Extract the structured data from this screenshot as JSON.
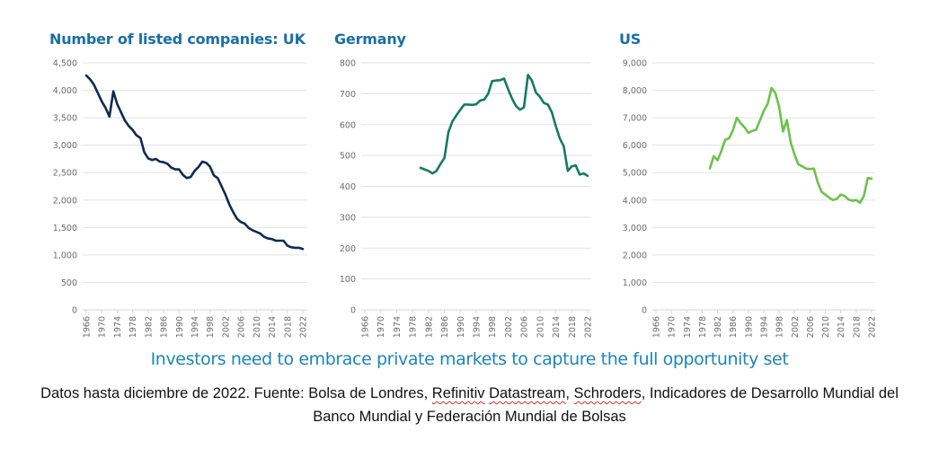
{
  "chart_data": [
    {
      "type": "line",
      "title": "Number of listed companies: UK",
      "xlabel": "",
      "ylabel": "",
      "ylim": [
        0,
        4500
      ],
      "yticks": [
        0,
        500,
        1000,
        1500,
        2000,
        2500,
        3000,
        3500,
        4000,
        4500
      ],
      "ytick_labels": [
        "0",
        "500",
        "1,000",
        "1,500",
        "2,000",
        "2,500",
        "3,000",
        "3,500",
        "4,000",
        "4,500"
      ],
      "xlim": [
        1966,
        2022
      ],
      "xticks": [
        "1966",
        "1970",
        "1974",
        "1978",
        "1982",
        "1986",
        "1990",
        "1994",
        "1998",
        "2002",
        "2006",
        "2010",
        "2014",
        "2018",
        "2022"
      ],
      "grid": true,
      "color": "#0d2a52",
      "x": [
        1966,
        1967,
        1968,
        1969,
        1970,
        1971,
        1972,
        1973,
        1974,
        1975,
        1976,
        1977,
        1978,
        1979,
        1980,
        1981,
        1982,
        1983,
        1984,
        1985,
        1986,
        1987,
        1988,
        1989,
        1990,
        1991,
        1992,
        1993,
        1994,
        1995,
        1996,
        1997,
        1998,
        1999,
        2000,
        2001,
        2002,
        2003,
        2004,
        2005,
        2006,
        2007,
        2008,
        2009,
        2010,
        2011,
        2012,
        2013,
        2014,
        2015,
        2016,
        2017,
        2018,
        2019,
        2020,
        2021,
        2022
      ],
      "values": [
        4270,
        4200,
        4100,
        3950,
        3800,
        3680,
        3520,
        3980,
        3750,
        3600,
        3450,
        3350,
        3280,
        3180,
        3130,
        2870,
        2760,
        2730,
        2750,
        2700,
        2690,
        2660,
        2590,
        2560,
        2560,
        2460,
        2400,
        2420,
        2530,
        2600,
        2700,
        2680,
        2610,
        2450,
        2400,
        2250,
        2100,
        1920,
        1780,
        1660,
        1600,
        1570,
        1490,
        1450,
        1420,
        1390,
        1330,
        1300,
        1290,
        1260,
        1260,
        1260,
        1170,
        1140,
        1130,
        1130,
        1110
      ]
    },
    {
      "type": "line",
      "title": "Germany",
      "xlabel": "",
      "ylabel": "",
      "ylim": [
        0,
        800
      ],
      "yticks": [
        0,
        100,
        200,
        300,
        400,
        500,
        600,
        700,
        800
      ],
      "ytick_labels": [
        "0",
        "100",
        "200",
        "300",
        "400",
        "500",
        "600",
        "700",
        "800"
      ],
      "xlim": [
        1966,
        2022
      ],
      "xticks": [
        "1966",
        "1970",
        "1974",
        "1978",
        "1982",
        "1986",
        "1990",
        "1994",
        "1998",
        "2002",
        "2006",
        "2010",
        "2014",
        "2018",
        "2022"
      ],
      "grid": true,
      "color": "#157a63",
      "x": [
        1980,
        1981,
        1982,
        1983,
        1984,
        1985,
        1986,
        1987,
        1988,
        1989,
        1990,
        1991,
        1992,
        1993,
        1994,
        1995,
        1996,
        1997,
        1998,
        1999,
        2000,
        2001,
        2002,
        2003,
        2004,
        2005,
        2006,
        2007,
        2008,
        2009,
        2010,
        2011,
        2012,
        2013,
        2014,
        2015,
        2016,
        2017,
        2018,
        2019,
        2020,
        2021,
        2022
      ],
      "values": [
        460,
        455,
        450,
        442,
        450,
        472,
        492,
        575,
        610,
        630,
        648,
        665,
        665,
        664,
        666,
        678,
        681,
        700,
        741,
        743,
        744,
        749,
        715,
        684,
        660,
        648,
        656,
        761,
        742,
        704,
        690,
        670,
        665,
        640,
        595,
        555,
        530,
        450,
        465,
        468,
        438,
        442,
        434
      ]
    },
    {
      "type": "line",
      "title": "US",
      "xlabel": "",
      "ylabel": "",
      "ylim": [
        0,
        9000
      ],
      "yticks": [
        0,
        1000,
        2000,
        3000,
        4000,
        5000,
        6000,
        7000,
        8000,
        9000
      ],
      "ytick_labels": [
        "0",
        "1,000",
        "2,000",
        "3,000",
        "4,000",
        "5,000",
        "6,000",
        "7,000",
        "8,000",
        "9,000"
      ],
      "xlim": [
        1966,
        2022
      ],
      "xticks": [
        "1966",
        "1970",
        "1974",
        "1978",
        "1982",
        "1986",
        "1990",
        "1994",
        "1998",
        "2002",
        "2006",
        "2010",
        "2014",
        "2018",
        "2022"
      ],
      "grid": true,
      "color": "#6cc24a",
      "x": [
        1980,
        1981,
        1982,
        1983,
        1984,
        1985,
        1986,
        1987,
        1988,
        1989,
        1990,
        1991,
        1992,
        1993,
        1994,
        1995,
        1996,
        1997,
        1998,
        1999,
        2000,
        2001,
        2002,
        2003,
        2004,
        2005,
        2006,
        2007,
        2008,
        2009,
        2010,
        2011,
        2012,
        2013,
        2014,
        2015,
        2016,
        2017,
        2018,
        2019,
        2020,
        2021,
        2022
      ],
      "values": [
        5150,
        5600,
        5450,
        5800,
        6200,
        6250,
        6550,
        7000,
        6800,
        6650,
        6450,
        6520,
        6560,
        6900,
        7250,
        7500,
        8080,
        7900,
        7400,
        6500,
        6920,
        6100,
        5650,
        5300,
        5230,
        5150,
        5130,
        5150,
        4650,
        4300,
        4200,
        4080,
        4000,
        4050,
        4200,
        4150,
        4020,
        3980,
        4000,
        3900,
        4150,
        4800,
        4780
      ]
    }
  ],
  "headline": "Investors need to embrace private markets to capture the full opportunity set",
  "caption": {
    "before": "Datos hasta diciembre de 2022. Fuente: Bolsa de Londres, ",
    "flagged_1": "Refinitiv",
    "between_1": " ",
    "flagged_2": "Datastream",
    "between_2": ", ",
    "flagged_3": "Schroders",
    "after": ", Indicadores de Desarrollo Mundial del Banco Mundial y Federación Mundial de Bolsas"
  }
}
